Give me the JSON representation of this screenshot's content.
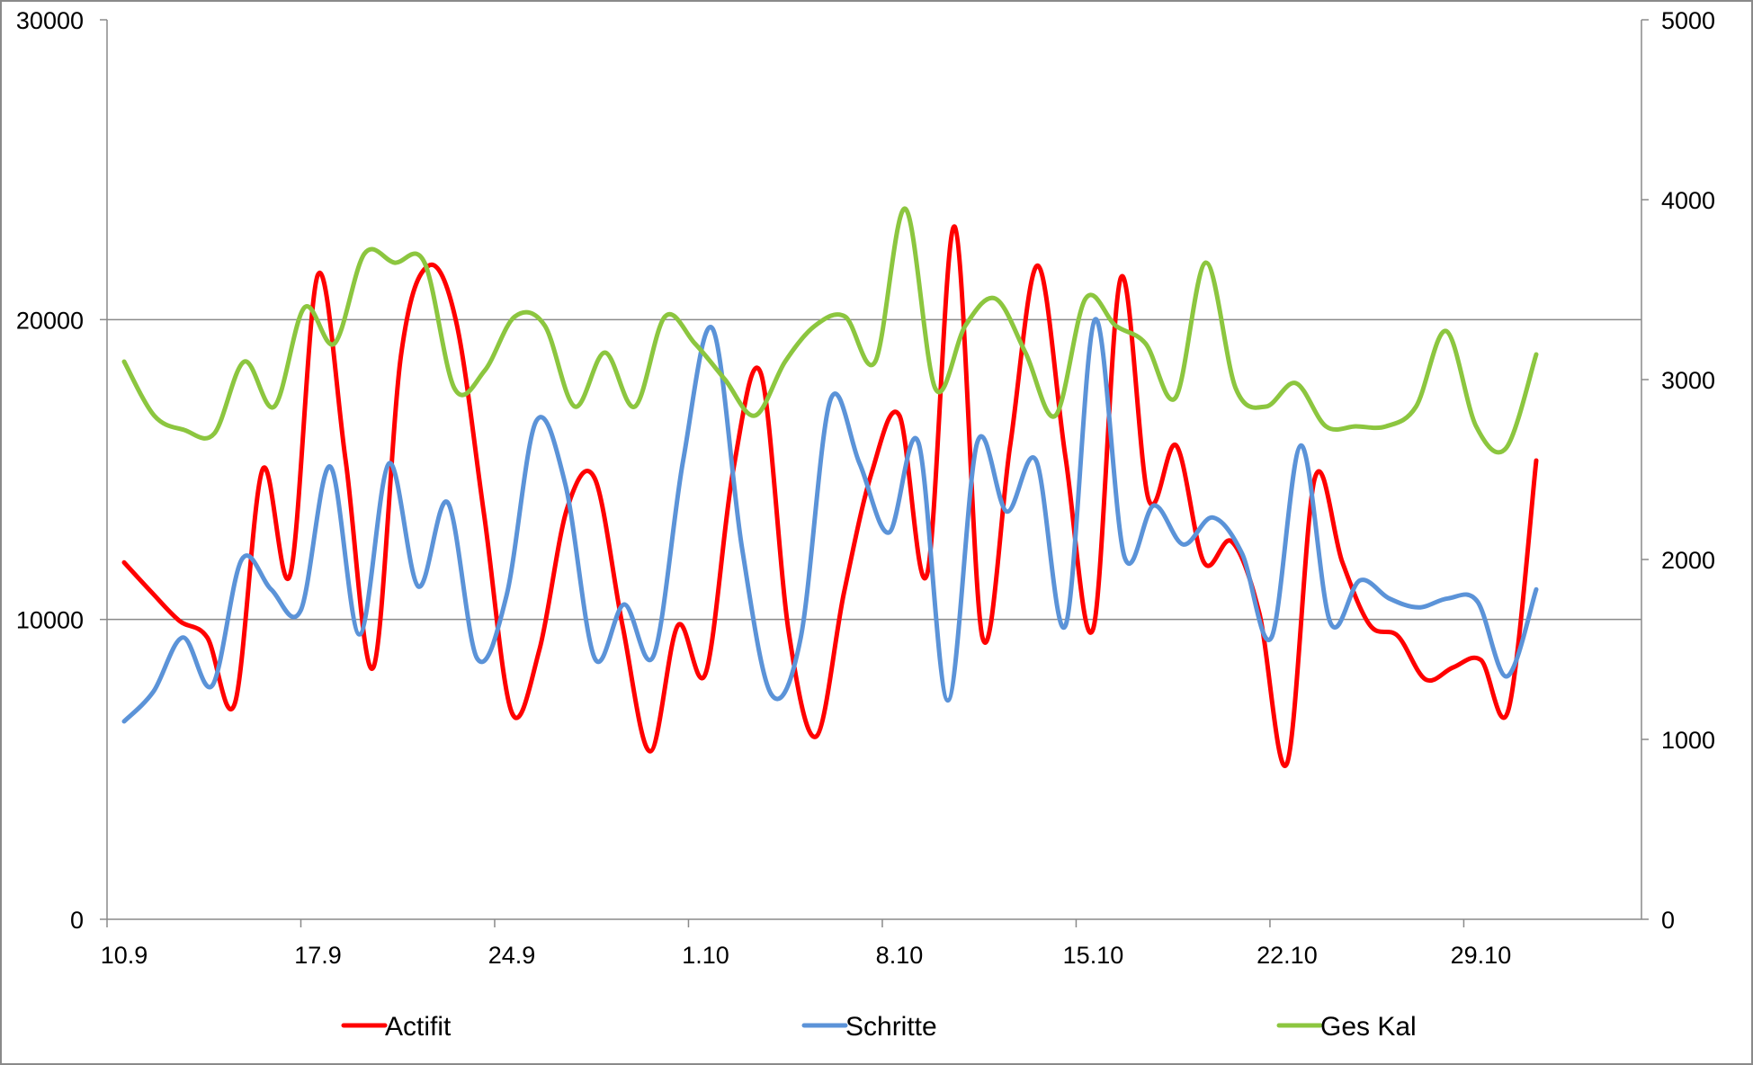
{
  "chart_data": {
    "type": "line",
    "title": "",
    "xlabel": "",
    "ylabel": "",
    "ylabel_right": "",
    "x_tick_labels": [
      "10.9",
      "17.9",
      "24.9",
      "1.10",
      "8.10",
      "15.10",
      "22.10",
      "29.10"
    ],
    "ylim_left": [
      0,
      30000
    ],
    "yticks_left": [
      0,
      10000,
      20000,
      30000
    ],
    "ylim_right": [
      0,
      5000
    ],
    "yticks_right": [
      0,
      1000,
      2000,
      3000,
      4000,
      5000
    ],
    "grid": "horizontal",
    "legend": "bottom",
    "colors": {
      "axis": "#8a8a8a",
      "grid": "#8a8a8a"
    },
    "series": [
      {
        "name": "Actifit",
        "axis": "left",
        "color": "#ff0000",
        "values": [
          11900,
          10900,
          9950,
          9400,
          7200,
          15000,
          11500,
          21500,
          15300,
          8400,
          18800,
          21800,
          19900,
          13500,
          6900,
          9000,
          13700,
          14700,
          9800,
          5600,
          9800,
          8200,
          15000,
          18200,
          9600,
          6100,
          10900,
          14900,
          16800,
          11500,
          23100,
          9400,
          15800,
          21800,
          15400,
          9700,
          21400,
          14000,
          15800,
          11900,
          12600,
          10200,
          5200,
          14700,
          11900,
          9800,
          9450,
          8000,
          8400,
          8650,
          7000,
          15300
        ]
      },
      {
        "name": "Schritte",
        "axis": "left",
        "color": "#5b93d8",
        "values": [
          6600,
          7600,
          9400,
          7800,
          12000,
          11000,
          10300,
          15100,
          9500,
          15200,
          11100,
          13900,
          8700,
          10800,
          16600,
          14500,
          8700,
          10500,
          8800,
          15300,
          19700,
          12400,
          7500,
          9400,
          17300,
          15200,
          12900,
          15900,
          7300,
          15900,
          13600,
          15300,
          9800,
          20000,
          12100,
          13800,
          12500,
          13400,
          12200,
          9400,
          15800,
          9900,
          11300,
          10700,
          10400,
          10700,
          10600,
          8100,
          11000
        ]
      },
      {
        "name": "Ges Kal",
        "axis": "right",
        "color": "#8cc63f",
        "values": [
          3100,
          2800,
          2720,
          2700,
          3100,
          2850,
          3400,
          3200,
          3700,
          3650,
          3650,
          2950,
          3050,
          3350,
          3300,
          2850,
          3150,
          2850,
          3350,
          3200,
          3000,
          2800,
          3100,
          3300,
          3350,
          3100,
          3950,
          2950,
          3300,
          3450,
          3150,
          2800,
          3450,
          3300,
          3200,
          2900,
          3650,
          2950,
          2850,
          2980,
          2740,
          2740,
          2740,
          2850,
          3270,
          2740,
          2620,
          3140
        ]
      }
    ]
  }
}
